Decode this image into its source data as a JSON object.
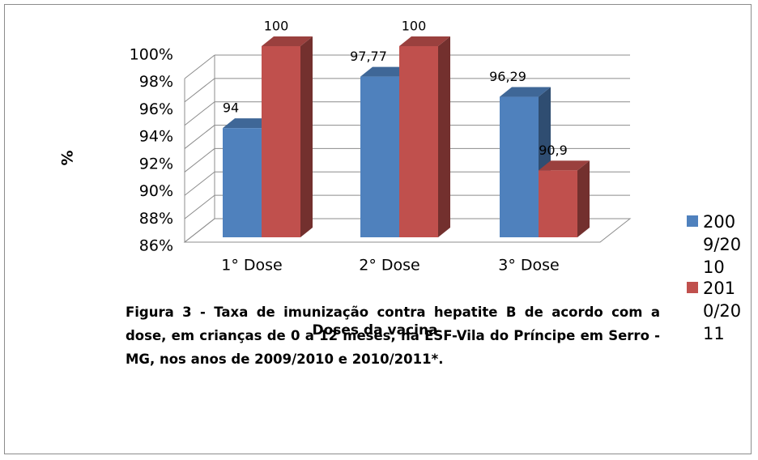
{
  "chart_data": {
    "type": "bar3d",
    "categories": [
      "1° Dose",
      "2° Dose",
      "3° Dose"
    ],
    "series": [
      {
        "name": "2009/2010",
        "color": "#4f81bd",
        "values": [
          94,
          97.77,
          96.29
        ],
        "value_labels": [
          "94",
          "97,77",
          "96,29"
        ]
      },
      {
        "name": "2010/2011",
        "color": "#c0504d",
        "values": [
          100,
          100,
          90.9
        ],
        "value_labels": [
          "100",
          "100",
          "90,9"
        ]
      }
    ],
    "ylim": [
      86,
      100
    ],
    "yticks": [
      {
        "value": 86,
        "label": "86%"
      },
      {
        "value": 88,
        "label": "88%"
      },
      {
        "value": 90,
        "label": "90%"
      },
      {
        "value": 92,
        "label": "92%"
      },
      {
        "value": 94,
        "label": "94%"
      },
      {
        "value": 96,
        "label": "96%"
      },
      {
        "value": 98,
        "label": "98%"
      },
      {
        "value": 100,
        "label": "100%"
      }
    ],
    "xlabel": "Doses da vacina",
    "ylabel": "%",
    "grid": true,
    "legend": "right",
    "caption": "Figura 3 - Taxa de imunização contra hepatite B de acordo com a dose, em crianças de 0 a 12 meses,  na ESF-Vila do Príncipe em Serro - MG, nos anos de 2009/2010 e 2010/2011*."
  }
}
